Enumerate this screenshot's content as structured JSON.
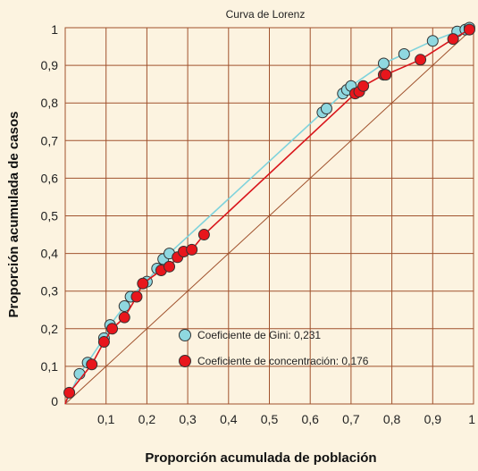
{
  "chart_data": {
    "type": "line",
    "title": "Curva de Lorenz",
    "xlabel": "Proporción acumulada de población",
    "ylabel": "Proporción acumulada de casos",
    "xlim": [
      0,
      1
    ],
    "ylim": [
      0,
      1
    ],
    "x_ticks": [
      "0,1",
      "0,2",
      "0,3",
      "0,4",
      "0,5",
      "0,6",
      "0,7",
      "0,8",
      "0,9",
      "1"
    ],
    "y_ticks": [
      "0",
      "0,1",
      "0,2",
      "0,3",
      "0,4",
      "0,5",
      "0,6",
      "0,7",
      "0,8",
      "0,9",
      "1"
    ],
    "grid": true,
    "colors": {
      "background": "#fcf3e0",
      "grid": "#a0522d",
      "diagonal": "#a0522d",
      "gini": "#8fd8e0",
      "gini_line": "#7fd3dc",
      "concentration": "#e8161c",
      "concentration_line": "#d9161c"
    },
    "series": [
      {
        "name": "Coeficiente de Gini: 0,231",
        "x": [
          0,
          0.035,
          0.055,
          0.095,
          0.11,
          0.145,
          0.16,
          0.2,
          0.225,
          0.24,
          0.255,
          0.63,
          0.64,
          0.68,
          0.69,
          0.7,
          0.78,
          0.83,
          0.9,
          0.96,
          0.98,
          0.99
        ],
        "y": [
          0,
          0.08,
          0.11,
          0.175,
          0.21,
          0.26,
          0.285,
          0.325,
          0.36,
          0.385,
          0.4,
          0.775,
          0.785,
          0.825,
          0.835,
          0.845,
          0.905,
          0.93,
          0.965,
          0.99,
          0.995,
          1
        ]
      },
      {
        "name": "Coeficiente de concentración: 0,176",
        "x": [
          0,
          0.01,
          0.065,
          0.095,
          0.115,
          0.145,
          0.175,
          0.19,
          0.235,
          0.255,
          0.275,
          0.29,
          0.31,
          0.34,
          0.71,
          0.72,
          0.73,
          0.78,
          0.785,
          0.87,
          0.95,
          0.99
        ],
        "y": [
          0,
          0.03,
          0.105,
          0.165,
          0.2,
          0.23,
          0.285,
          0.32,
          0.355,
          0.365,
          0.39,
          0.405,
          0.41,
          0.45,
          0.825,
          0.83,
          0.845,
          0.875,
          0.875,
          0.915,
          0.97,
          0.995
        ]
      }
    ],
    "legend": {
      "placement": "inside-lower-center",
      "entries": [
        "Coeficiente de Gini: 0,231",
        "Coeficiente de concentración: 0,176"
      ]
    }
  }
}
